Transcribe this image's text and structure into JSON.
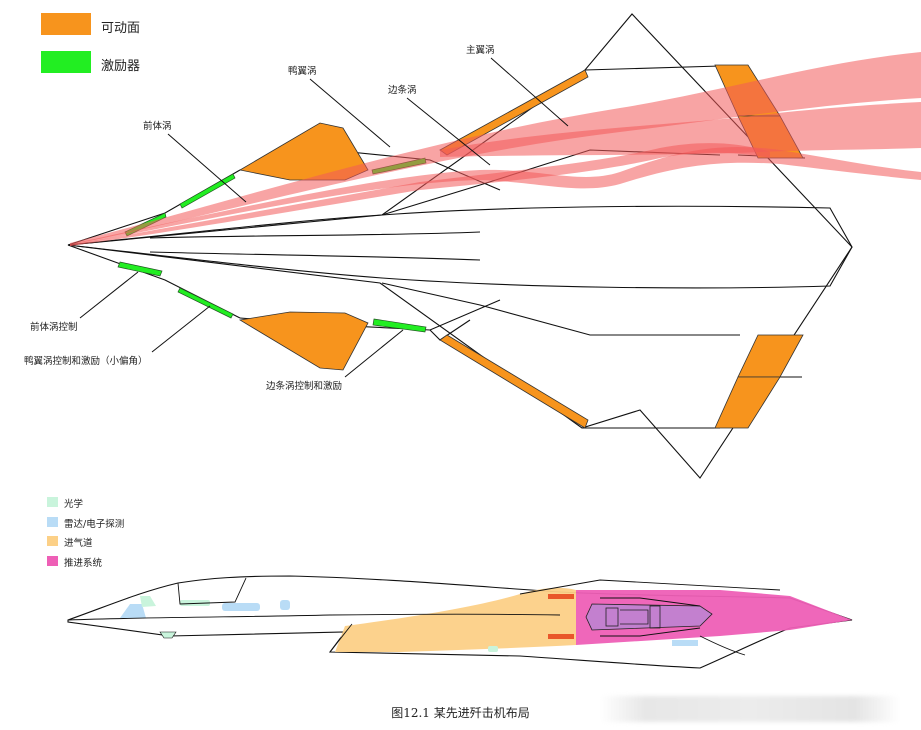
{
  "top_legend": [
    {
      "label": "可动面",
      "color": "#f7941d"
    },
    {
      "label": "激励器",
      "color": "#22ee22"
    }
  ],
  "bottom_legend": [
    {
      "label": "光学",
      "color": "#c9f4dc"
    },
    {
      "label": "雷达/电子探测",
      "color": "#b9dcf6"
    },
    {
      "label": "进气道",
      "color": "#fcd087"
    },
    {
      "label": "推进系统",
      "color": "#ee5fb6"
    }
  ],
  "callouts": {
    "main_wing_vortex": "主翼涡",
    "canard_vortex": "鸭翼涡",
    "strake_vortex": "边条涡",
    "forebody_vortex": "前体涡",
    "forebody_vortex_control": "前体涡控制",
    "canard_vortex_control": "鸭翼涡控制和激励（小偏角）",
    "strake_vortex_control": "边条涡控制和激励"
  },
  "caption": "图12.1 某先进歼击机布局",
  "colors": {
    "control_surface": "#f7941d",
    "actuator": "#22ee22",
    "vortex": "#f25a5a"
  }
}
